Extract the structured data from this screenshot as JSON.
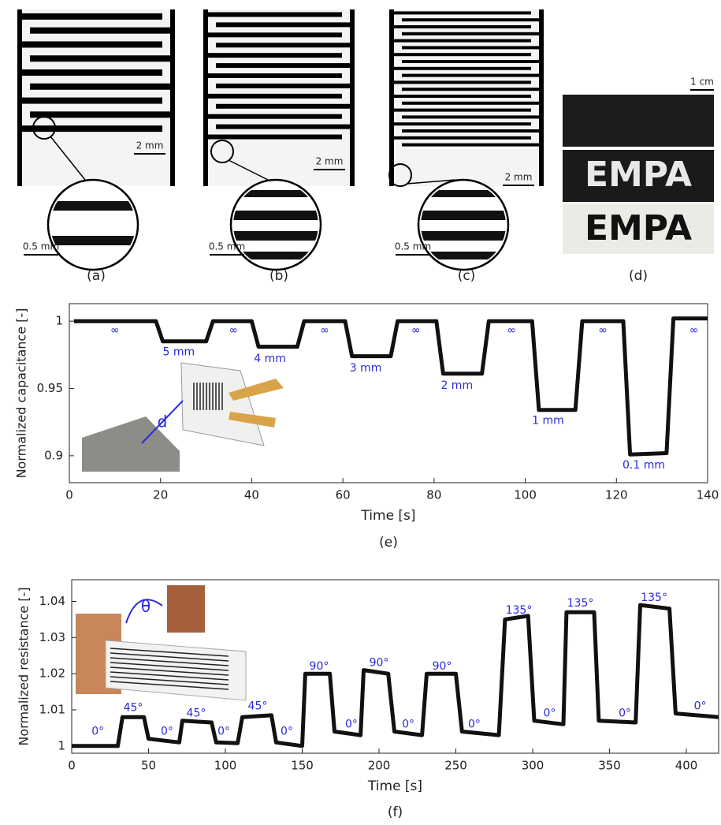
{
  "panels": [
    {
      "label": "(a)",
      "scale_bar": "2 mm",
      "zoom_scale_bar": "0.5 mm"
    },
    {
      "label": "(b)",
      "scale_bar": "2 mm",
      "zoom_scale_bar": "0.5 mm"
    },
    {
      "label": "(c)",
      "scale_bar": "2 mm",
      "zoom_scale_bar": "0.5 mm"
    },
    {
      "label": "(d)",
      "scale_bar": "1 cm",
      "texts": [
        "EMPA",
        "EMPA"
      ]
    }
  ],
  "chart_data": [
    {
      "type": "line",
      "caption": "(e)",
      "xlabel": "Time [s]",
      "ylabel": "Normalized capacitance [-]",
      "inset_label": "d",
      "color": "#111111",
      "annotation_color": "#2b2bdc",
      "x": [
        1,
        19,
        20.5,
        30,
        31.5,
        40,
        41.5,
        50,
        51.5,
        60.5,
        62,
        70.5,
        72,
        80.5,
        82,
        90.5,
        92,
        101.5,
        103,
        111,
        112.5,
        121.5,
        123,
        131,
        132.5,
        140
      ],
      "values": [
        1,
        1,
        0.985,
        0.985,
        1,
        1,
        0.981,
        0.981,
        1,
        1,
        0.974,
        0.974,
        1,
        1,
        0.961,
        0.961,
        1,
        1,
        0.934,
        0.934,
        1,
        1,
        0.901,
        0.902,
        1.002,
        1.002
      ],
      "xlim": [
        0,
        140
      ],
      "ylim": [
        0.88,
        1.013
      ],
      "xticks": [
        0,
        20,
        40,
        60,
        80,
        100,
        120,
        140
      ],
      "yticks": [
        0.9,
        0.95,
        1
      ],
      "annotations": [
        {
          "text": "∞",
          "x": 10,
          "y": 0.993
        },
        {
          "text": "5 mm",
          "x": 24,
          "y": 0.977
        },
        {
          "text": "∞",
          "x": 36,
          "y": 0.993
        },
        {
          "text": "4 mm",
          "x": 44,
          "y": 0.972
        },
        {
          "text": "∞",
          "x": 56,
          "y": 0.993
        },
        {
          "text": "3 mm",
          "x": 65,
          "y": 0.965
        },
        {
          "text": "∞",
          "x": 76,
          "y": 0.993
        },
        {
          "text": "2 mm",
          "x": 85,
          "y": 0.952
        },
        {
          "text": "∞",
          "x": 97,
          "y": 0.993
        },
        {
          "text": "1 mm",
          "x": 105,
          "y": 0.926
        },
        {
          "text": "∞",
          "x": 117,
          "y": 0.993
        },
        {
          "text": "0.1 mm",
          "x": 126,
          "y": 0.893
        },
        {
          "text": "∞",
          "x": 137,
          "y": 0.993
        }
      ]
    },
    {
      "type": "line",
      "caption": "(f)",
      "xlabel": "Time [s]",
      "ylabel": "Normalized resistance [-]",
      "inset_label": "θ",
      "color": "#111111",
      "annotation_color": "#2b2bdc",
      "x": [
        0,
        30,
        33,
        47,
        50,
        70,
        72,
        91,
        94,
        108,
        111,
        130,
        133,
        150,
        152,
        168,
        171,
        188,
        190,
        206,
        210,
        228,
        231,
        250,
        254,
        278,
        282,
        297,
        301,
        320,
        322,
        340,
        343,
        367,
        370,
        389,
        393,
        421
      ],
      "values": [
        1,
        1,
        1.008,
        1.008,
        1.002,
        1.001,
        1.007,
        1.0065,
        1.001,
        1.0008,
        1.008,
        1.0085,
        1.001,
        1.0,
        1.02,
        1.02,
        1.004,
        1.003,
        1.021,
        1.02,
        1.004,
        1.003,
        1.02,
        1.02,
        1.004,
        1.003,
        1.035,
        1.036,
        1.007,
        1.006,
        1.037,
        1.037,
        1.007,
        1.0065,
        1.039,
        1.038,
        1.009,
        1.008
      ],
      "xlim": [
        0,
        421
      ],
      "ylim": [
        0.998,
        1.046
      ],
      "xticks": [
        0,
        50,
        100,
        150,
        200,
        250,
        300,
        350,
        400
      ],
      "yticks": [
        1,
        1.01,
        1.02,
        1.03,
        1.04
      ],
      "annotations": [
        {
          "text": "0°",
          "x": 17,
          "y": 1.004
        },
        {
          "text": "45°",
          "x": 40,
          "y": 1.0105
        },
        {
          "text": "0°",
          "x": 62,
          "y": 1.004
        },
        {
          "text": "45°",
          "x": 81,
          "y": 1.009
        },
        {
          "text": "0°",
          "x": 99,
          "y": 1.004
        },
        {
          "text": "45°",
          "x": 121,
          "y": 1.011
        },
        {
          "text": "0°",
          "x": 140,
          "y": 1.004
        },
        {
          "text": "90°",
          "x": 161,
          "y": 1.022
        },
        {
          "text": "0°",
          "x": 182,
          "y": 1.006
        },
        {
          "text": "90°",
          "x": 200,
          "y": 1.023
        },
        {
          "text": "0°",
          "x": 219,
          "y": 1.006
        },
        {
          "text": "90°",
          "x": 241,
          "y": 1.022
        },
        {
          "text": "0°",
          "x": 262,
          "y": 1.006
        },
        {
          "text": "135°",
          "x": 291,
          "y": 1.0375
        },
        {
          "text": "0°",
          "x": 311,
          "y": 1.009
        },
        {
          "text": "135°",
          "x": 331,
          "y": 1.0395
        },
        {
          "text": "0°",
          "x": 360,
          "y": 1.009
        },
        {
          "text": "135°",
          "x": 379,
          "y": 1.041
        },
        {
          "text": "0°",
          "x": 409,
          "y": 1.011
        }
      ]
    }
  ]
}
